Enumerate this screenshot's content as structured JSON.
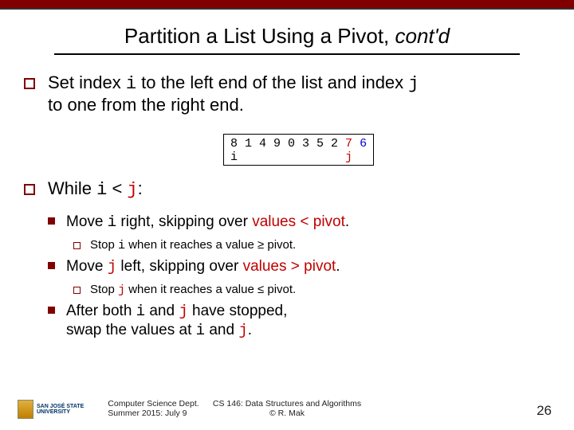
{
  "title_pre": "Partition a List Using a Pivot, ",
  "title_ital": "cont'd",
  "p1_a": "Set index ",
  "p1_i": "i",
  "p1_b": " to the left end of the list and index ",
  "p1_j": "j",
  "p1_c": " to one from the right end.",
  "arr_line1_pre": "8 1 4 9 0 3 5 2 ",
  "arr_line1_7": "7",
  "arr_line1_sp": " ",
  "arr_line1_6": "6",
  "arr_line2_i": "i",
  "arr_line2_pad": "               ",
  "arr_line2_j": "j",
  "p2_a": "While ",
  "p2_i": "i",
  "p2_b": " < ",
  "p2_j": "j",
  "p2_c": ":",
  "s1_a": "Move ",
  "s1_i": "i",
  "s1_b": " right, skipping over ",
  "s1_c": "values < pivot",
  "s1_d": ".",
  "s1s_a": "Stop ",
  "s1s_i": "i",
  "s1s_b": " when it reaches a value ≥ pivot.",
  "s2_a": "Move ",
  "s2_j": "j",
  "s2_b": " left, skipping over ",
  "s2_c": "values > pivot",
  "s2_d": ".",
  "s2s_a": "Stop ",
  "s2s_j": "j",
  "s2s_b": " when it reaches a value ≤ pivot.",
  "s3_a": "After both ",
  "s3_i": "i",
  "s3_b": " and ",
  "s3_j": "j",
  "s3_c": " have stopped,",
  "s3_d": "swap the values at ",
  "s3_e": " and ",
  "s3_f": ".",
  "foot_dept": "Computer Science Dept.",
  "foot_date": "Summer 2015: July 9",
  "foot_course": "CS 146: Data Structures and Algorithms",
  "foot_author": "© R. Mak",
  "page_num": "26",
  "logo1": "SAN JOSÉ STATE",
  "logo2": "UNIVERSITY",
  "colors": {
    "maroon": "#800000",
    "red": "#c00000",
    "blue": "#0000e0"
  }
}
